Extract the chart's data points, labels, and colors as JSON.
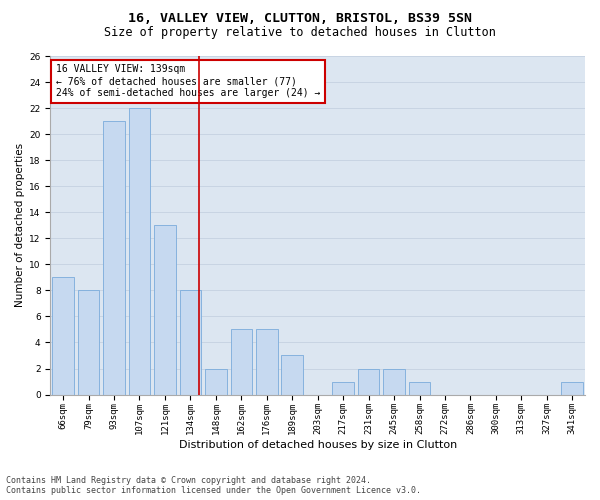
{
  "title_line1": "16, VALLEY VIEW, CLUTTON, BRISTOL, BS39 5SN",
  "title_line2": "Size of property relative to detached houses in Clutton",
  "xlabel": "Distribution of detached houses by size in Clutton",
  "ylabel": "Number of detached properties",
  "categories": [
    "66sqm",
    "79sqm",
    "93sqm",
    "107sqm",
    "121sqm",
    "134sqm",
    "148sqm",
    "162sqm",
    "176sqm",
    "189sqm",
    "203sqm",
    "217sqm",
    "231sqm",
    "245sqm",
    "258sqm",
    "272sqm",
    "286sqm",
    "300sqm",
    "313sqm",
    "327sqm",
    "341sqm"
  ],
  "values": [
    9,
    8,
    21,
    22,
    13,
    8,
    2,
    5,
    5,
    3,
    0,
    1,
    2,
    2,
    1,
    0,
    0,
    0,
    0,
    0,
    1
  ],
  "bar_color": "#c6d9f0",
  "bar_edgecolor": "#7aabdb",
  "annotation_text": "16 VALLEY VIEW: 139sqm\n← 76% of detached houses are smaller (77)\n24% of semi-detached houses are larger (24) →",
  "annotation_box_color": "#ffffff",
  "annotation_box_edgecolor": "#cc0000",
  "red_line_color": "#cc0000",
  "ylim": [
    0,
    26
  ],
  "yticks": [
    0,
    2,
    4,
    6,
    8,
    10,
    12,
    14,
    16,
    18,
    20,
    22,
    24,
    26
  ],
  "grid_color": "#c8d4e3",
  "background_color": "#dce6f1",
  "footnote": "Contains HM Land Registry data © Crown copyright and database right 2024.\nContains public sector information licensed under the Open Government Licence v3.0.",
  "title_fontsize": 9.5,
  "subtitle_fontsize": 8.5,
  "xlabel_fontsize": 8,
  "ylabel_fontsize": 7.5,
  "tick_fontsize": 6.5,
  "annot_fontsize": 7,
  "footnote_fontsize": 6
}
